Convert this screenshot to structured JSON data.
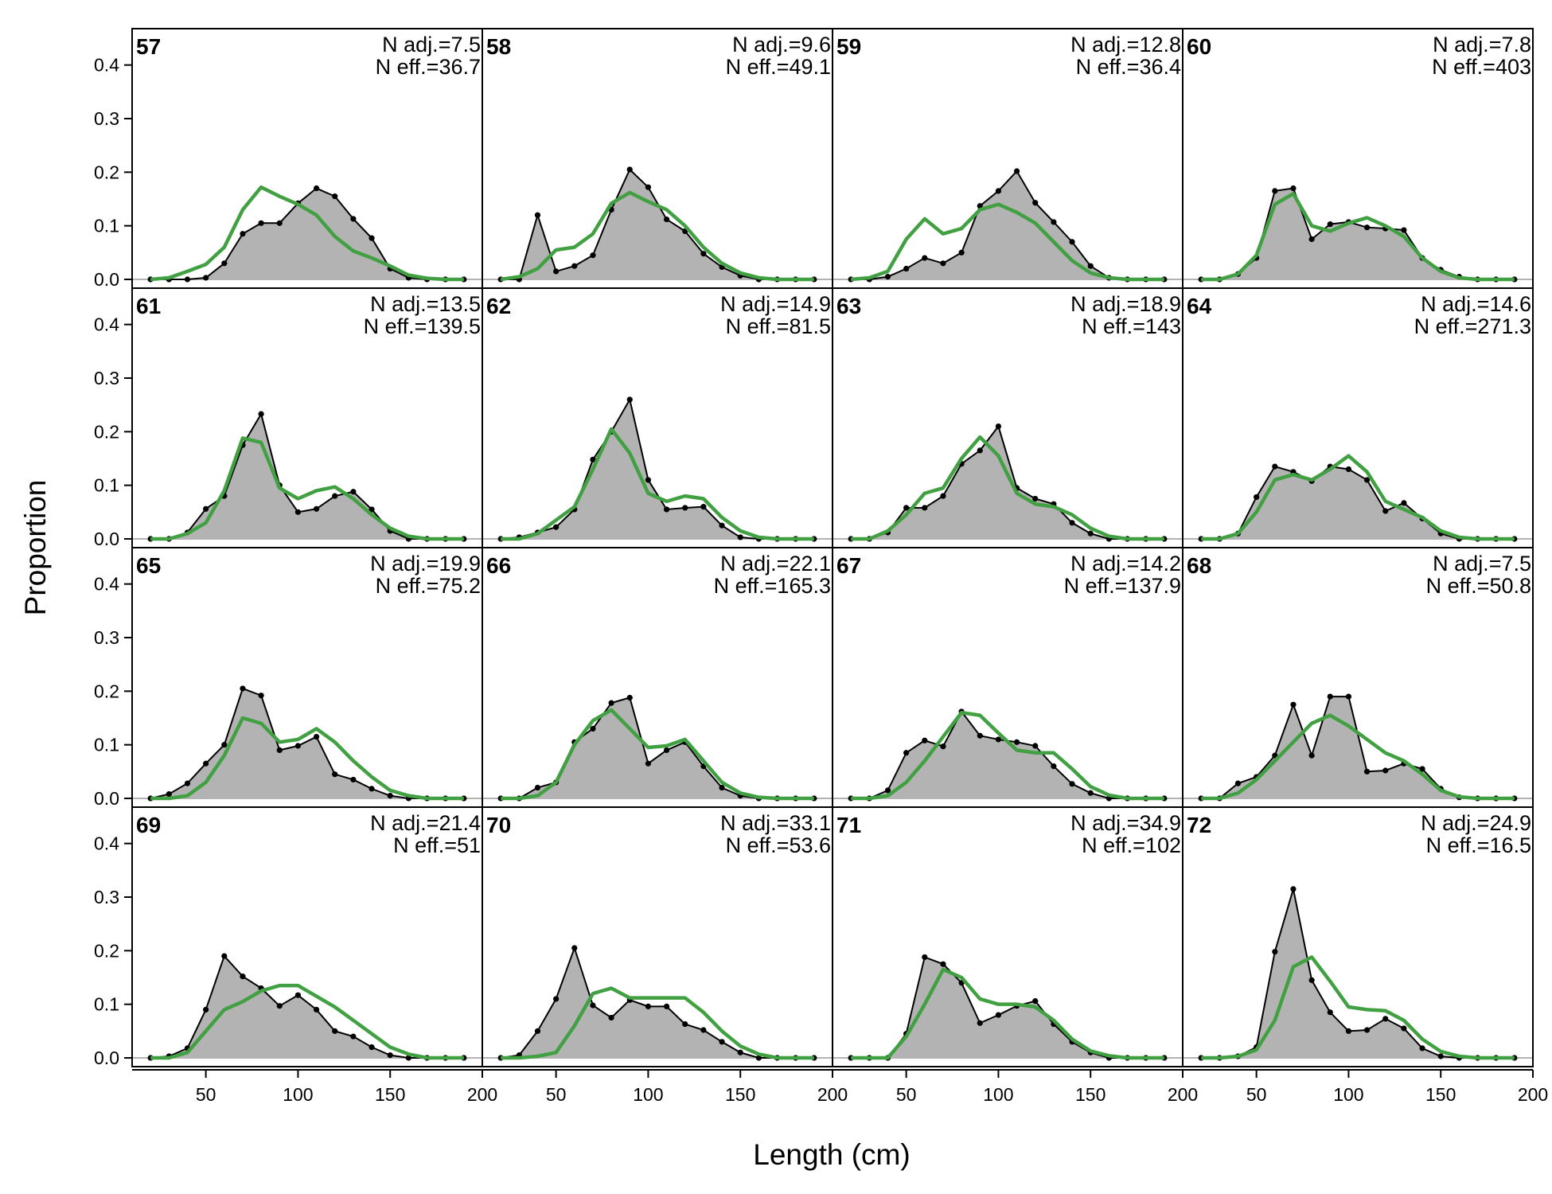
{
  "chart_data": {
    "type": "area",
    "xlabel": "Length (cm)",
    "ylabel": "Proportion",
    "xlim": [
      10,
      200
    ],
    "ylim": [
      0,
      0.45
    ],
    "x_ticks": [
      50,
      100,
      150,
      200
    ],
    "y_ticks": [
      "0.0",
      "0.1",
      "0.2",
      "0.3",
      "0.4"
    ],
    "grid": false,
    "colors": {
      "observed_fill": "#b3b3b3",
      "observed_line": "#000000",
      "expected_line": "#41a041",
      "zero_line": "#b3b3b3"
    },
    "x": [
      20,
      30,
      40,
      50,
      60,
      70,
      80,
      90,
      100,
      110,
      120,
      130,
      140,
      150,
      160,
      170,
      180,
      190
    ],
    "panels": [
      {
        "label": "57",
        "n_adj": "N adj.=7.5",
        "n_eff": "N eff.=36.7",
        "observed": [
          0,
          0,
          0,
          0.003,
          0.03,
          0.085,
          0.105,
          0.105,
          0.142,
          0.17,
          0.155,
          0.113,
          0.077,
          0.02,
          0.003,
          0,
          0,
          0
        ],
        "expected": [
          0,
          0.003,
          0.015,
          0.028,
          0.06,
          0.13,
          0.172,
          0.155,
          0.14,
          0.12,
          0.08,
          0.053,
          0.04,
          0.025,
          0.008,
          0.002,
          0,
          0
        ]
      },
      {
        "label": "61",
        "n_adj": "N adj.=13.5",
        "n_eff": "N eff.=139.5",
        "observed": [
          0,
          0,
          0.012,
          0.056,
          0.08,
          0.175,
          0.233,
          0.1,
          0.05,
          0.056,
          0.08,
          0.088,
          0.055,
          0.015,
          0,
          0,
          0,
          0
        ],
        "expected": [
          0,
          0,
          0.01,
          0.03,
          0.09,
          0.188,
          0.18,
          0.095,
          0.075,
          0.09,
          0.097,
          0.075,
          0.045,
          0.02,
          0.005,
          0,
          0,
          0
        ]
      },
      {
        "label": "65",
        "n_adj": "N adj.=19.9",
        "n_eff": "N eff.=75.2",
        "observed": [
          0,
          0.008,
          0.028,
          0.065,
          0.1,
          0.205,
          0.192,
          0.09,
          0.098,
          0.115,
          0.045,
          0.035,
          0.018,
          0.005,
          0,
          0,
          0,
          0
        ],
        "expected": [
          0,
          0,
          0.005,
          0.03,
          0.08,
          0.15,
          0.14,
          0.105,
          0.11,
          0.13,
          0.105,
          0.07,
          0.04,
          0.015,
          0.005,
          0,
          0,
          0
        ]
      },
      {
        "label": "69",
        "n_adj": "N adj.=21.4",
        "n_eff": "N eff.=51",
        "observed": [
          0,
          0.003,
          0.018,
          0.09,
          0.19,
          0.152,
          0.13,
          0.097,
          0.117,
          0.09,
          0.05,
          0.04,
          0.02,
          0.005,
          0,
          0,
          0,
          0
        ],
        "expected": [
          0,
          0,
          0.01,
          0.05,
          0.09,
          0.105,
          0.125,
          0.135,
          0.135,
          0.115,
          0.095,
          0.07,
          0.045,
          0.02,
          0.007,
          0,
          0,
          0
        ]
      },
      {
        "label": "58",
        "n_adj": "N adj.=9.6",
        "n_eff": "N eff.=49.1",
        "observed": [
          0,
          0,
          0.12,
          0.015,
          0.025,
          0.045,
          0.13,
          0.205,
          0.172,
          0.112,
          0.09,
          0.048,
          0.023,
          0.007,
          0,
          0,
          0,
          0
        ],
        "expected": [
          0,
          0.005,
          0.02,
          0.055,
          0.06,
          0.085,
          0.142,
          0.162,
          0.145,
          0.13,
          0.1,
          0.06,
          0.03,
          0.012,
          0.003,
          0,
          0,
          0
        ]
      },
      {
        "label": "62",
        "n_adj": "N adj.=14.9",
        "n_eff": "N eff.=81.5",
        "observed": [
          0,
          0.003,
          0.012,
          0.022,
          0.055,
          0.148,
          0.2,
          0.26,
          0.11,
          0.055,
          0.058,
          0.06,
          0.025,
          0.003,
          0,
          0,
          0,
          0
        ],
        "expected": [
          0,
          0,
          0.01,
          0.035,
          0.06,
          0.13,
          0.205,
          0.16,
          0.085,
          0.07,
          0.08,
          0.075,
          0.04,
          0.015,
          0.003,
          0,
          0,
          0
        ]
      },
      {
        "label": "66",
        "n_adj": "N adj.=22.1",
        "n_eff": "N eff.=165.3",
        "observed": [
          0,
          0,
          0.02,
          0.03,
          0.105,
          0.13,
          0.178,
          0.188,
          0.065,
          0.09,
          0.105,
          0.06,
          0.02,
          0.005,
          0,
          0,
          0,
          0
        ],
        "expected": [
          0,
          0,
          0.005,
          0.03,
          0.1,
          0.145,
          0.165,
          0.13,
          0.095,
          0.098,
          0.11,
          0.07,
          0.03,
          0.01,
          0.002,
          0,
          0,
          0
        ]
      },
      {
        "label": "70",
        "n_adj": "N adj.=33.1",
        "n_eff": "N eff.=53.6",
        "observed": [
          0,
          0.005,
          0.05,
          0.11,
          0.205,
          0.098,
          0.075,
          0.108,
          0.096,
          0.096,
          0.063,
          0.052,
          0.03,
          0.01,
          0,
          0,
          0,
          0
        ],
        "expected": [
          0,
          0,
          0.003,
          0.01,
          0.06,
          0.12,
          0.13,
          0.112,
          0.112,
          0.112,
          0.112,
          0.085,
          0.05,
          0.022,
          0.007,
          0,
          0,
          0
        ]
      },
      {
        "label": "59",
        "n_adj": "N adj.=12.8",
        "n_eff": "N eff.=36.4",
        "observed": [
          0,
          0,
          0.005,
          0.02,
          0.04,
          0.03,
          0.05,
          0.137,
          0.165,
          0.202,
          0.143,
          0.107,
          0.07,
          0.025,
          0.003,
          0,
          0,
          0
        ],
        "expected": [
          0,
          0.003,
          0.015,
          0.075,
          0.113,
          0.085,
          0.095,
          0.13,
          0.14,
          0.125,
          0.105,
          0.07,
          0.035,
          0.012,
          0.003,
          0,
          0,
          0
        ]
      },
      {
        "label": "63",
        "n_adj": "N adj.=18.9",
        "n_eff": "N eff.=143",
        "observed": [
          0,
          0,
          0.012,
          0.058,
          0.058,
          0.08,
          0.14,
          0.165,
          0.21,
          0.095,
          0.075,
          0.065,
          0.03,
          0.01,
          0,
          0,
          0,
          0
        ],
        "expected": [
          0,
          0,
          0.015,
          0.045,
          0.085,
          0.095,
          0.15,
          0.19,
          0.155,
          0.085,
          0.065,
          0.06,
          0.045,
          0.02,
          0.005,
          0,
          0,
          0
        ]
      },
      {
        "label": "67",
        "n_adj": "N adj.=14.2",
        "n_eff": "N eff.=137.9",
        "observed": [
          0,
          0,
          0.015,
          0.085,
          0.108,
          0.097,
          0.162,
          0.117,
          0.11,
          0.105,
          0.098,
          0.06,
          0.027,
          0.01,
          0,
          0,
          0,
          0
        ],
        "expected": [
          0,
          0,
          0.005,
          0.03,
          0.07,
          0.115,
          0.16,
          0.155,
          0.122,
          0.09,
          0.085,
          0.085,
          0.055,
          0.022,
          0.006,
          0,
          0,
          0
        ]
      },
      {
        "label": "71",
        "n_adj": "N adj.=34.9",
        "n_eff": "N eff.=102",
        "observed": [
          0,
          0,
          0,
          0.045,
          0.188,
          0.175,
          0.14,
          0.065,
          0.08,
          0.097,
          0.106,
          0.063,
          0.03,
          0.01,
          0,
          0,
          0,
          0
        ],
        "expected": [
          0,
          0,
          0,
          0.04,
          0.1,
          0.165,
          0.15,
          0.11,
          0.1,
          0.1,
          0.095,
          0.07,
          0.035,
          0.013,
          0.004,
          0,
          0,
          0
        ]
      },
      {
        "label": "60",
        "n_adj": "N adj.=7.8",
        "n_eff": "N eff.=403",
        "observed": [
          0,
          0,
          0.01,
          0.04,
          0.165,
          0.17,
          0.075,
          0.103,
          0.107,
          0.097,
          0.095,
          0.092,
          0.04,
          0.018,
          0.005,
          0,
          0,
          0
        ],
        "expected": [
          0,
          0,
          0.01,
          0.045,
          0.14,
          0.16,
          0.1,
          0.09,
          0.105,
          0.115,
          0.1,
          0.08,
          0.04,
          0.015,
          0.003,
          0,
          0,
          0
        ]
      },
      {
        "label": "64",
        "n_adj": "N adj.=14.6",
        "n_eff": "N eff.=271.3",
        "observed": [
          0,
          0,
          0.01,
          0.078,
          0.135,
          0.125,
          0.108,
          0.135,
          0.13,
          0.11,
          0.052,
          0.067,
          0.038,
          0.01,
          0,
          0,
          0,
          0
        ],
        "expected": [
          0,
          0,
          0.01,
          0.05,
          0.11,
          0.12,
          0.11,
          0.13,
          0.155,
          0.125,
          0.07,
          0.055,
          0.04,
          0.015,
          0.003,
          0,
          0,
          0
        ]
      },
      {
        "label": "68",
        "n_adj": "N adj.=7.5",
        "n_eff": "N eff.=50.8",
        "observed": [
          0,
          0,
          0.028,
          0.04,
          0.08,
          0.175,
          0.08,
          0.19,
          0.19,
          0.05,
          0.052,
          0.065,
          0.055,
          0.018,
          0.002,
          0,
          0,
          0
        ],
        "expected": [
          0,
          0,
          0.01,
          0.035,
          0.07,
          0.105,
          0.14,
          0.155,
          0.135,
          0.11,
          0.085,
          0.07,
          0.045,
          0.015,
          0.003,
          0,
          0,
          0
        ]
      },
      {
        "label": "72",
        "n_adj": "N adj.=24.9",
        "n_eff": "N eff.=16.5",
        "observed": [
          0,
          0,
          0.003,
          0.02,
          0.198,
          0.315,
          0.145,
          0.085,
          0.05,
          0.052,
          0.073,
          0.055,
          0.018,
          0.003,
          0,
          0,
          0,
          0
        ],
        "expected": [
          0,
          0,
          0.003,
          0.015,
          0.07,
          0.17,
          0.188,
          0.143,
          0.095,
          0.09,
          0.088,
          0.07,
          0.035,
          0.012,
          0.003,
          0,
          0,
          0
        ]
      }
    ]
  }
}
